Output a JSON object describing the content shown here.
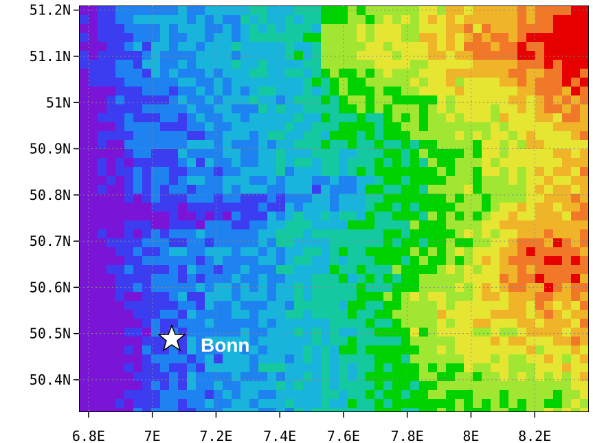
{
  "map": {
    "lon_ticks": [
      "6.8E",
      "7E",
      "7.2E",
      "7.4E",
      "7.6E",
      "7.8E",
      "8E",
      "8.2E"
    ],
    "lon_tick_values": [
      6.8,
      7.0,
      7.2,
      7.4,
      7.6,
      7.8,
      8.0,
      8.2
    ],
    "lat_ticks": [
      "51.2N",
      "51.1N",
      "51N",
      "50.9N",
      "50.8N",
      "50.7N",
      "50.6N",
      "50.5N",
      "50.4N"
    ],
    "lat_tick_values": [
      51.2,
      51.1,
      51.0,
      50.9,
      50.8,
      50.7,
      50.6,
      50.5,
      50.4
    ],
    "lon_range": [
      6.77,
      8.37
    ],
    "lat_range": [
      50.33,
      51.21
    ],
    "grid": true,
    "colormap": [
      "#7a14d6",
      "#3c3cf0",
      "#1e82f0",
      "#18b4dc",
      "#14c8a0",
      "#00d200",
      "#a0e632",
      "#e6e632",
      "#f0b428",
      "#f07828",
      "#e60000"
    ]
  },
  "marker": {
    "label": "Bonn",
    "symbol": "star-icon",
    "lon": 7.07,
    "lat": 50.49,
    "color": "#ffffff"
  }
}
